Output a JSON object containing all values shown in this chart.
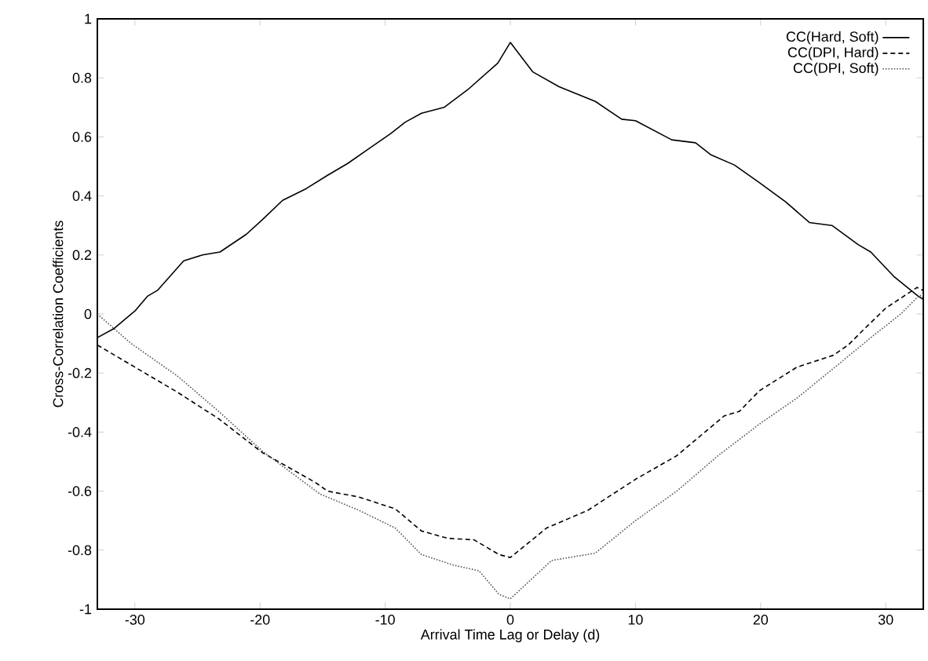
{
  "chart_data": {
    "type": "line",
    "xlabel": "Arrival Time Lag or Delay (d)",
    "ylabel": "Cross-Correlation Coefficients",
    "xlim": [
      -33,
      33
    ],
    "ylim": [
      -1,
      1
    ],
    "xticks": [
      -30,
      -20,
      -10,
      0,
      10,
      20,
      30
    ],
    "yticks": [
      -1,
      -0.8,
      -0.6,
      -0.4,
      -0.2,
      0,
      0.2,
      0.4,
      0.6,
      0.8,
      1
    ],
    "grid": false,
    "legend": "top right",
    "marker": "none",
    "series": [
      {
        "name": "CC(Hard, Soft)",
        "color": "#000000",
        "line_style": "solid",
        "x": [
          -33,
          -31.7,
          -30,
          -29,
          -28.2,
          -26.1,
          -24.6,
          -23.2,
          -21.1,
          -19.8,
          -18.2,
          -16.3,
          -14.6,
          -13,
          -11.3,
          -9.6,
          -8.4,
          -7.1,
          -5.3,
          -3.4,
          -1,
          0,
          1.8,
          3.9,
          6.8,
          8.9,
          10,
          12.9,
          14.8,
          16,
          17.9,
          19.9,
          22,
          23.9,
          25.7,
          27.8,
          28.8,
          30.7,
          32.6,
          33
        ],
        "values": [
          -0.08,
          -0.05,
          0.01,
          0.06,
          0.08,
          0.18,
          0.2,
          0.21,
          0.27,
          0.32,
          0.385,
          0.425,
          0.47,
          0.51,
          0.56,
          0.61,
          0.65,
          0.68,
          0.7,
          0.76,
          0.85,
          0.92,
          0.82,
          0.77,
          0.72,
          0.66,
          0.655,
          0.59,
          0.58,
          0.54,
          0.505,
          0.445,
          0.38,
          0.31,
          0.3,
          0.235,
          0.21,
          0.125,
          0.06,
          0.05
        ]
      },
      {
        "name": "CC(DPI, Hard)",
        "color": "#000000",
        "line_style": "dashed",
        "x": [
          -33,
          -30,
          -26.6,
          -23.3,
          -19.8,
          -15.6,
          -14.6,
          -12.1,
          -9.2,
          -7.1,
          -5,
          -2.9,
          -0.9,
          0,
          2.9,
          6.2,
          10,
          13.3,
          17.1,
          18.3,
          19.9,
          22.9,
          25.8,
          27,
          28.3,
          30,
          32.5,
          33
        ],
        "values": [
          -0.105,
          -0.18,
          -0.265,
          -0.355,
          -0.47,
          -0.57,
          -0.6,
          -0.62,
          -0.66,
          -0.735,
          -0.76,
          -0.765,
          -0.815,
          -0.825,
          -0.725,
          -0.665,
          -0.56,
          -0.48,
          -0.345,
          -0.33,
          -0.26,
          -0.18,
          -0.14,
          -0.105,
          -0.05,
          0.02,
          0.09,
          0.08
        ]
      },
      {
        "name": "CC(DPI, Soft)",
        "color": "#555555",
        "line_style": "dotted",
        "x": [
          -33,
          -30.3,
          -26.6,
          -23.3,
          -19.8,
          -15.2,
          -12.1,
          -9.2,
          -7.1,
          -4.6,
          -2.5,
          -0.9,
          0,
          3.3,
          6.8,
          10,
          13.3,
          16.6,
          20,
          22.9,
          25.8,
          29.1,
          31.2,
          32.6,
          33
        ],
        "values": [
          0.0,
          -0.1,
          -0.21,
          -0.33,
          -0.465,
          -0.61,
          -0.665,
          -0.725,
          -0.815,
          -0.85,
          -0.87,
          -0.95,
          -0.965,
          -0.835,
          -0.81,
          -0.7,
          -0.6,
          -0.48,
          -0.37,
          -0.285,
          -0.185,
          -0.07,
          0.0,
          0.06,
          0.065
        ]
      }
    ]
  }
}
